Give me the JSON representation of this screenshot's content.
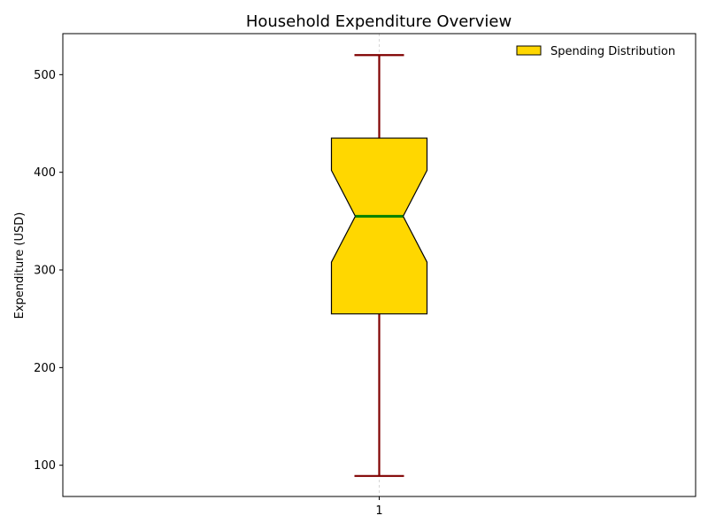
{
  "chart_data": {
    "type": "boxplot",
    "title": "Household Expenditure Overview",
    "xlabel": "",
    "ylabel": "Expenditure (USD)",
    "categories": [
      "1"
    ],
    "ylim": [
      68,
      542
    ],
    "yticks": [
      100,
      200,
      300,
      400,
      500
    ],
    "grid": "x-dashed",
    "notched": true,
    "legend": {
      "placement": "top-right",
      "entries": [
        "Spending Distribution"
      ]
    },
    "series": [
      {
        "name": "Spending Distribution",
        "whisker_low": 89,
        "q1": 255,
        "median": 355,
        "q3": 435,
        "whisker_high": 520,
        "notch_low": 308,
        "notch_high": 402
      }
    ],
    "colors": {
      "box_fill": "#FFD700",
      "box_edge": "#000000",
      "median": "#008000",
      "whisker": "#800000",
      "grid": "#cccccc"
    }
  }
}
